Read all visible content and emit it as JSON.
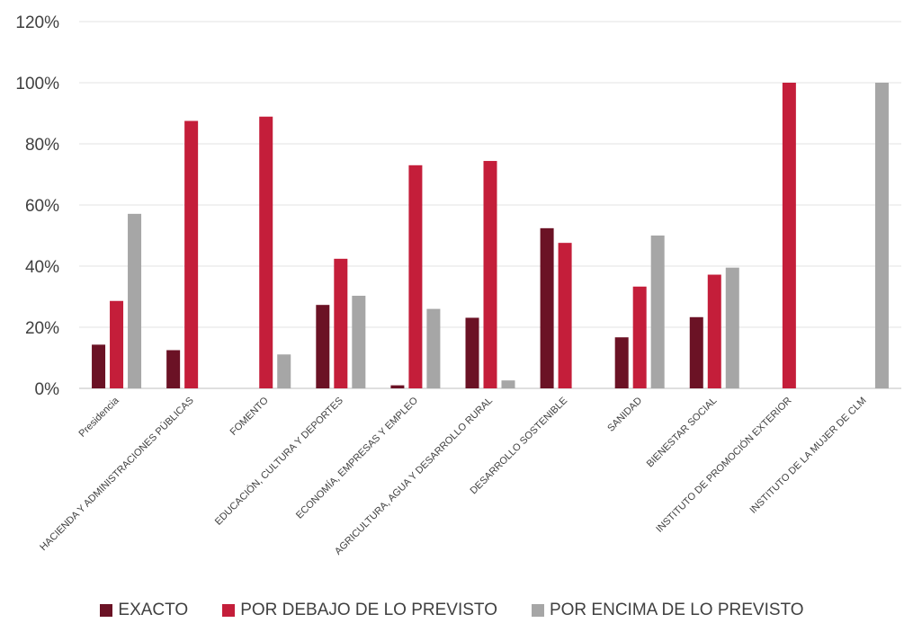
{
  "chart_data": {
    "type": "bar",
    "categories": [
      "Presidencia",
      "HACIENDA Y ADMINISTRACIONES PÚBLICAS",
      "FOMENTO",
      "EDUCACIÓN, CULTURA Y DEPORTES",
      "ECONOMÍA, EMPRESAS Y EMPLEO",
      "AGRICULTURA, AGUA Y DESARROLLO RURAL",
      "DESARROLLO SOSTENIBLE",
      "SANIDAD",
      "BIENESTAR SOCIAL",
      "INSTITUTO DE PROMOCIÓN EXTERIOR",
      "INSTITUTO DE LA MUJER DE CLM"
    ],
    "series": [
      {
        "name": "EXACTO",
        "color": "#6b1225",
        "values": [
          14.3,
          12.5,
          0,
          27.3,
          1.0,
          23.1,
          52.4,
          16.7,
          23.3,
          0,
          0
        ]
      },
      {
        "name": "POR DEBAJO DE LO PREVISTO",
        "color": "#c41e3a",
        "values": [
          28.6,
          87.5,
          88.9,
          42.4,
          73.0,
          74.4,
          47.6,
          33.3,
          37.2,
          100,
          0
        ]
      },
      {
        "name": "POR ENCIMA DE LO PREVISTO",
        "color": "#a6a6a6",
        "values": [
          57.1,
          0,
          11.1,
          30.3,
          26.0,
          2.6,
          0,
          50.0,
          39.5,
          0,
          100
        ]
      }
    ],
    "ylim": [
      0,
      120
    ],
    "yticks": [
      "0%",
      "20%",
      "40%",
      "60%",
      "80%",
      "100%",
      "120%"
    ],
    "grid": true,
    "legend_position": "bottom"
  }
}
